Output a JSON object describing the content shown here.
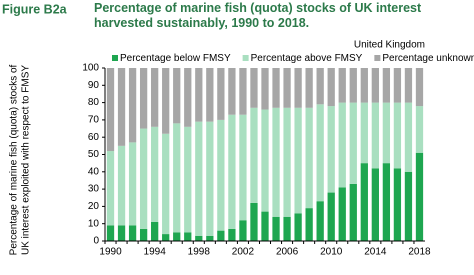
{
  "chart_data": {
    "type": "stacked_bar",
    "figure_label": "Figure B2a",
    "title": "Percentage of marine fish (quota) stocks of UK interest harvested sustainably, 1990 to 2018.",
    "subtitle": "United Kingdom",
    "y_label": [
      "Percentage of marine fish (quota) stocks of",
      "UK interest exploited with respect to FMSY"
    ],
    "categories": [
      "1990",
      null,
      null,
      null,
      "1994",
      null,
      null,
      null,
      "1998",
      null,
      null,
      null,
      "2002",
      null,
      null,
      null,
      "2006",
      null,
      null,
      null,
      "2010",
      null,
      null,
      null,
      "2014",
      null,
      null,
      null,
      "2018"
    ],
    "series": [
      {
        "name": "Percentage below FMSY",
        "color": "#1ea650",
        "values": [
          9,
          9,
          9,
          7,
          11,
          4,
          5,
          5,
          3,
          3,
          6,
          7,
          12,
          22,
          17,
          14,
          14,
          16,
          19,
          23,
          28,
          31,
          33,
          45,
          42,
          45,
          42,
          40,
          51
        ]
      },
      {
        "name": "Percentage above FMSY",
        "color": "#a9dfc0",
        "values": [
          43,
          46,
          48,
          58,
          55,
          58,
          63,
          61,
          66,
          66,
          64,
          66,
          61,
          55,
          59,
          63,
          63,
          61,
          58,
          56,
          50,
          49,
          47,
          35,
          38,
          35,
          38,
          40,
          27
        ]
      },
      {
        "name": "Percentage unknown",
        "color": "#a6a6a6",
        "values": [
          48,
          45,
          43,
          35,
          34,
          38,
          32,
          34,
          31,
          31,
          30,
          27,
          27,
          23,
          24,
          23,
          23,
          23,
          23,
          21,
          22,
          20,
          20,
          20,
          20,
          20,
          20,
          20,
          22
        ]
      }
    ],
    "ylim": [
      0,
      100
    ],
    "yticks": [
      0,
      10,
      20,
      30,
      40,
      50,
      60,
      70,
      80,
      90,
      100
    ]
  }
}
